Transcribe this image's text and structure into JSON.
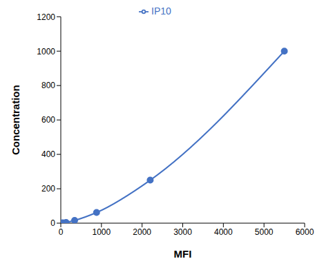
{
  "chart_data": {
    "type": "line",
    "x_label": "MFI",
    "y_label": "Concentration",
    "x": [
      20,
      50,
      130,
      340,
      880,
      2200,
      5500
    ],
    "series": [
      {
        "name": "IP10",
        "color": "#4472c4",
        "values": [
          1,
          2,
          4,
          16,
          62,
          250,
          1000
        ],
        "marker": "circle"
      }
    ],
    "xlim": [
      0,
      6000
    ],
    "xticks": [
      0,
      1000,
      2000,
      3000,
      4000,
      5000,
      6000
    ],
    "ylim": [
      0,
      1200
    ],
    "yticks": [
      0,
      200,
      400,
      600,
      800,
      1000,
      1200
    ],
    "grid": false,
    "legend": "top"
  }
}
